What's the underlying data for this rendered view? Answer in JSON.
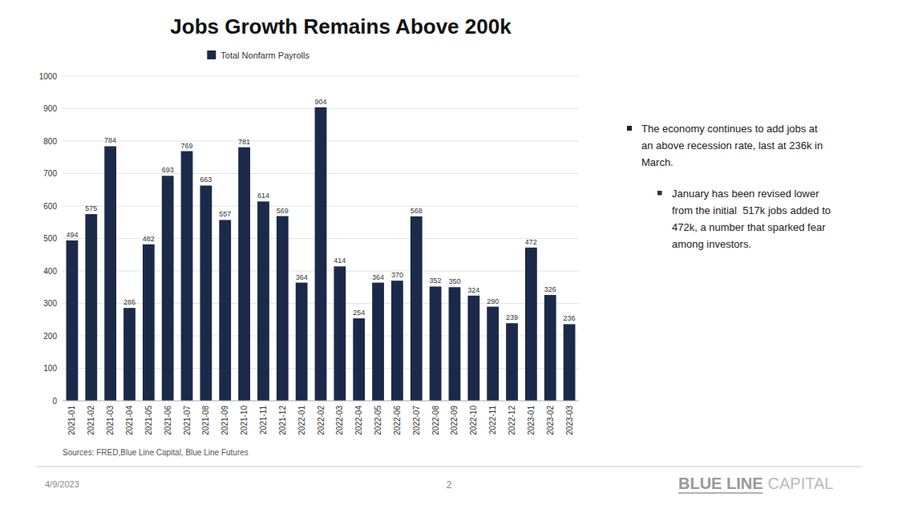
{
  "chart_data": {
    "type": "bar",
    "title": "Jobs Growth Remains Above 200k",
    "categories": [
      "2021-01",
      "2021-02",
      "2021-03",
      "2021-04",
      "2021-05",
      "2021-06",
      "2021-07",
      "2021-08",
      "2021-09",
      "2021-10",
      "2021-11",
      "2021-12",
      "2022-01",
      "2022-02",
      "2022-03",
      "2022-04",
      "2022-05",
      "2022-06",
      "2022-07",
      "2022-08",
      "2022-09",
      "2022-10",
      "2022-11",
      "2022-12",
      "2023-01",
      "2023-02",
      "2023-03"
    ],
    "series": [
      {
        "name": "Total Nonfarm Payrolls",
        "color": "#1b2a4a",
        "values": [
          494,
          575,
          784,
          286,
          482,
          693,
          769,
          663,
          557,
          781,
          614,
          569,
          364,
          904,
          414,
          254,
          364,
          370,
          568,
          352,
          350,
          324,
          290,
          239,
          472,
          326,
          236
        ]
      }
    ],
    "ylim": [
      0,
      1000
    ],
    "yticks": [
      0,
      100,
      200,
      300,
      400,
      500,
      600,
      700,
      800,
      900,
      1000
    ],
    "grid": true,
    "legend": "top",
    "data_labels": true,
    "annotations": [
      "Sources: FRED,Blue Line Capital, Blue Line Futures",
      "4/9/2023",
      "2",
      "BLUE LINE",
      "CAPITAL",
      "The economy continues to add jobs at",
      "an above recession rate, last at 236k in",
      "March.",
      "January has been revised lower",
      "from the initial  517k jobs added to",
      "472k, a number that sparked fear",
      "among investors."
    ]
  }
}
